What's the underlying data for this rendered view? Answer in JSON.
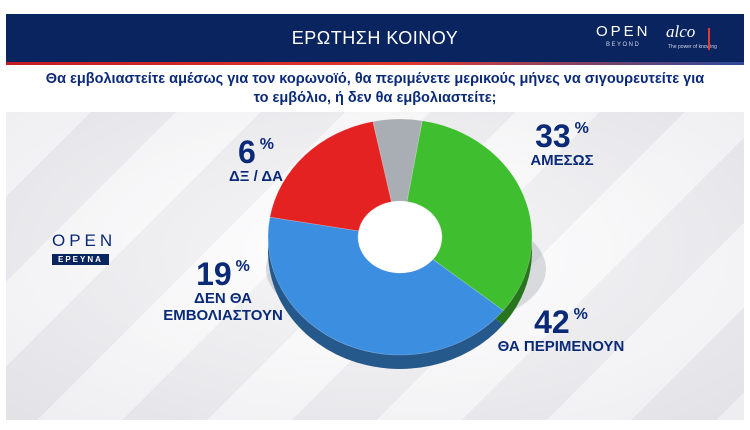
{
  "header": {
    "title": "ΕΡΩΤΗΣΗ ΚΟΙΝΟΥ",
    "logo_open": "OPEN",
    "logo_open_sub": "BEYOND",
    "logo_alco": "alco",
    "logo_alco_sub": "The power of knowing"
  },
  "question": "Θα εμβολιαστείτε αμέσως για τον κορωνοϊό, θα περιμένετε μερικούς μήνες να σιγουρευτείτε για το εμβόλιο, ή δεν θα εμβολιαστείτε;",
  "side_logo": {
    "open": "OPEN",
    "sub": "ΕΡΕΥΝΑ"
  },
  "colors": {
    "navy": "#0a2460",
    "text": "#0a2a78",
    "green": "#3fbf2f",
    "blue": "#3b8ee0",
    "red": "#e52222",
    "gray": "#a9aeb5"
  },
  "chart_data": {
    "type": "pie",
    "subtype": "donut-3d",
    "unit": "%",
    "series": [
      {
        "label": "ΑΜΕΣΩΣ",
        "value": 33,
        "color": "#3fbf2f"
      },
      {
        "label": "ΘΑ ΠΕΡΙΜΕΝΟΥΝ",
        "value": 42,
        "color": "#3b8ee0"
      },
      {
        "label": "ΔΕΝ ΘΑ ΕΜΒΟΛΙΑΣΤΟΥΝ",
        "value": 19,
        "color": "#e52222"
      },
      {
        "label": "ΔΞ / ΔΑ",
        "value": 6,
        "color": "#a9aeb5"
      }
    ],
    "labels": {
      "amesos": {
        "value": "33",
        "sign": "%",
        "text": "ΑΜΕΣΩΣ"
      },
      "perimenoun": {
        "value": "42",
        "sign": "%",
        "text": "ΘΑ ΠΕΡΙΜΕΝΟΥΝ"
      },
      "den": {
        "value": "19",
        "sign": "%",
        "line1": "ΔΕΝ ΘΑ",
        "line2": "ΕΜΒΟΛΙΑΣΤΟΥΝ"
      },
      "dxda": {
        "value": "6",
        "sign": "%",
        "text": "ΔΞ / ΔΑ"
      }
    }
  }
}
